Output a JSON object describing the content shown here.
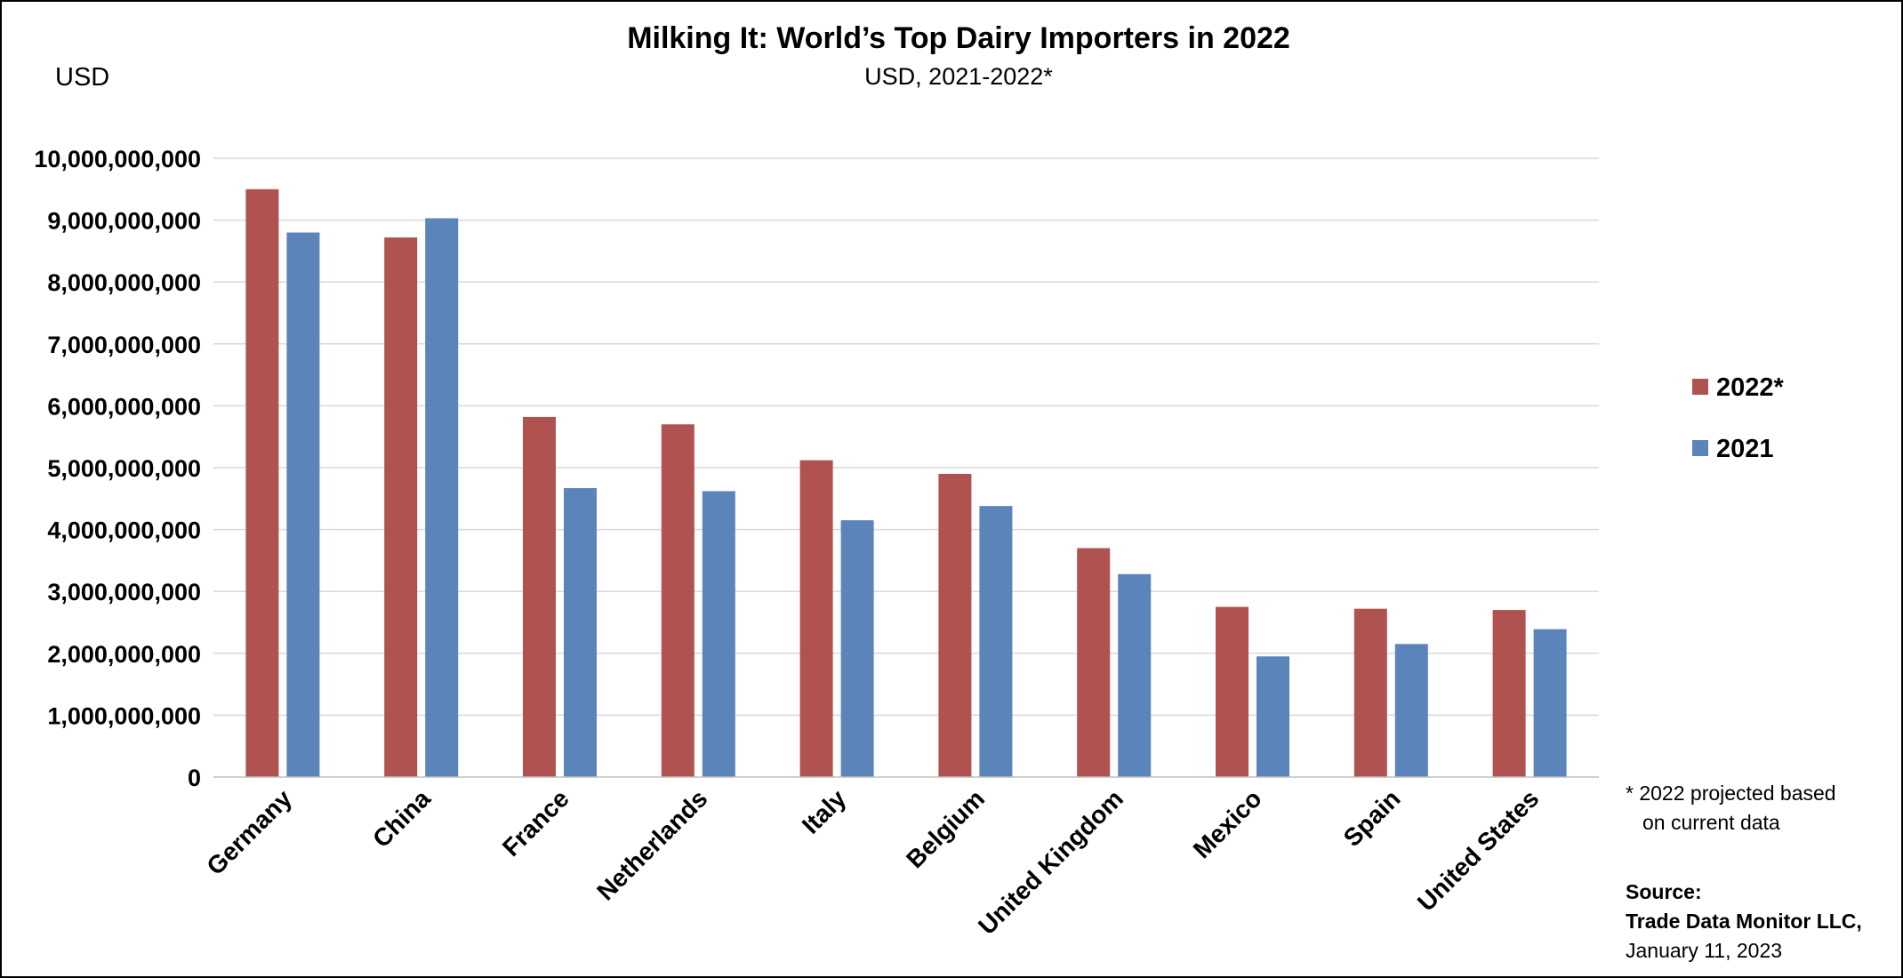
{
  "chart_data": {
    "type": "bar",
    "title": "Milking It: World’s Top Dairy Importers in 2022",
    "subtitle": "USD, 2021-2022*",
    "ylabel": "USD",
    "xlabel": "",
    "ylim": [
      0,
      10000000000
    ],
    "y_ticks": [
      "0",
      "1,000,000,000",
      "2,000,000,000",
      "3,000,000,000",
      "4,000,000,000",
      "5,000,000,000",
      "6,000,000,000",
      "7,000,000,000",
      "8,000,000,000",
      "9,000,000,000",
      "10,000,000,000"
    ],
    "grid": true,
    "legend_position": "right",
    "categories": [
      "Germany",
      "China",
      "France",
      "Netherlands",
      "Italy",
      "Belgium",
      "United Kingdom",
      "Mexico",
      "Spain",
      "United States"
    ],
    "series": [
      {
        "name": "2022*",
        "color": "#b0524f",
        "values": [
          9500000000,
          8720000000,
          5820000000,
          5700000000,
          5120000000,
          4900000000,
          3700000000,
          2750000000,
          2720000000,
          2700000000
        ]
      },
      {
        "name": "2021",
        "color": "#5b84bb",
        "values": [
          8800000000,
          9030000000,
          4670000000,
          4620000000,
          4150000000,
          4380000000,
          3280000000,
          1950000000,
          2150000000,
          2390000000
        ]
      }
    ],
    "footnote_lines": [
      "* 2022 projected based",
      "on current data"
    ],
    "source_label": "Source:",
    "source_org": "Trade Data Monitor LLC,",
    "source_date": "January 11, 2023"
  }
}
